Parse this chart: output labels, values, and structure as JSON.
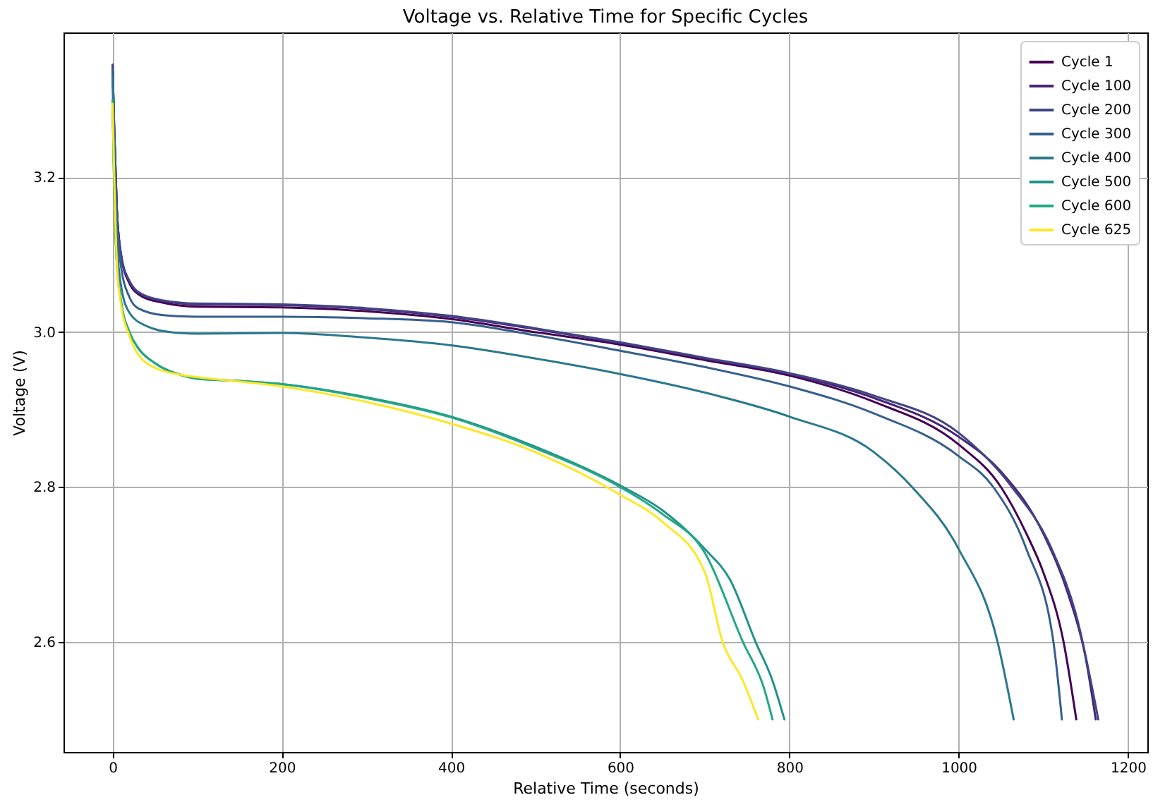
{
  "chart_data": {
    "type": "line",
    "title": "Voltage vs. Relative Time for Specific Cycles",
    "xlabel": "Relative Time (seconds)",
    "ylabel": "Voltage (V)",
    "xlim": [
      -58,
      1223
    ],
    "ylim": [
      2.458,
      3.387
    ],
    "xticks": [
      0,
      200,
      400,
      600,
      800,
      1000,
      1200
    ],
    "yticks": [
      2.6,
      2.8,
      {
        "value": 3.0,
        "label": "3.0"
      },
      3.2
    ],
    "grid": true,
    "legend": "top right",
    "marker": "none",
    "line_style": "solid",
    "series": [
      {
        "name": "Cycle 1",
        "color": "#440154",
        "x": [
          0,
          2,
          5,
          10,
          20,
          35,
          60,
          100,
          200,
          300,
          400,
          500,
          600,
          700,
          800,
          900,
          1000,
          1050,
          1080,
          1100,
          1124,
          1139
        ],
        "values": [
          3.345,
          3.26,
          3.16,
          3.1,
          3.063,
          3.046,
          3.038,
          3.033,
          3.032,
          3.027,
          3.017,
          3.0,
          2.984,
          2.964,
          2.944,
          2.91,
          2.855,
          2.8,
          2.74,
          2.69,
          2.6,
          2.5
        ]
      },
      {
        "name": "Cycle 100",
        "color": "#482475",
        "x": [
          0,
          2,
          5,
          10,
          20,
          35,
          60,
          100,
          200,
          300,
          400,
          500,
          600,
          700,
          800,
          900,
          1000,
          1050,
          1100,
          1130,
          1150,
          1162
        ],
        "values": [
          3.345,
          3.26,
          3.16,
          3.1,
          3.065,
          3.048,
          3.04,
          3.036,
          3.035,
          3.03,
          3.02,
          3.004,
          2.986,
          2.966,
          2.946,
          2.915,
          2.865,
          2.82,
          2.74,
          2.66,
          2.58,
          2.5
        ]
      },
      {
        "name": "Cycle 200",
        "color": "#414487",
        "x": [
          0,
          2,
          5,
          10,
          20,
          35,
          60,
          100,
          200,
          300,
          400,
          500,
          600,
          700,
          800,
          900,
          1000,
          1063,
          1110,
          1140,
          1165
        ],
        "values": [
          3.345,
          3.26,
          3.16,
          3.1,
          3.066,
          3.049,
          3.041,
          3.037,
          3.036,
          3.031,
          3.021,
          3.005,
          2.987,
          2.967,
          2.947,
          2.918,
          2.87,
          2.8,
          2.72,
          2.63,
          2.5
        ]
      },
      {
        "name": "Cycle 300",
        "color": "#355f8d",
        "x": [
          0,
          2,
          5,
          10,
          20,
          30,
          60,
          100,
          200,
          300,
          400,
          500,
          600,
          700,
          800,
          900,
          1000,
          1041,
          1080,
          1112,
          1122
        ],
        "values": [
          3.34,
          3.25,
          3.15,
          3.085,
          3.045,
          3.031,
          3.022,
          3.02,
          3.02,
          3.018,
          3.013,
          2.996,
          2.976,
          2.955,
          2.93,
          2.895,
          2.84,
          2.8,
          2.72,
          2.6,
          2.5
        ]
      },
      {
        "name": "Cycle 400",
        "color": "#2a788e",
        "x": [
          0,
          2,
          5,
          10,
          20,
          40,
          70,
          100,
          200,
          300,
          400,
          500,
          600,
          700,
          800,
          900,
          945,
          1000,
          1046,
          1065
        ],
        "values": [
          3.33,
          3.22,
          3.12,
          3.06,
          3.025,
          3.008,
          3.0,
          2.998,
          2.999,
          2.993,
          2.983,
          2.966,
          2.946,
          2.922,
          2.891,
          2.845,
          2.8,
          2.72,
          2.6,
          2.5
        ]
      },
      {
        "name": "Cycle 500",
        "color": "#21918c",
        "x": [
          0,
          2,
          5,
          10,
          20,
          30,
          50,
          80,
          100,
          150,
          200,
          300,
          400,
          500,
          600,
          650,
          700,
          730,
          760,
          780,
          794
        ],
        "values": [
          3.3,
          3.18,
          3.09,
          3.04,
          3.0,
          2.98,
          2.96,
          2.945,
          2.94,
          2.937,
          2.933,
          2.916,
          2.891,
          2.852,
          2.802,
          2.77,
          2.72,
          2.68,
          2.6,
          2.55,
          2.5
        ]
      },
      {
        "name": "Cycle 600",
        "color": "#22a884",
        "x": [
          0,
          2,
          5,
          10,
          20,
          30,
          50,
          80,
          100,
          150,
          200,
          300,
          400,
          500,
          600,
          650,
          700,
          745,
          770,
          780
        ],
        "values": [
          3.3,
          3.18,
          3.09,
          3.04,
          3.0,
          2.98,
          2.96,
          2.945,
          2.94,
          2.937,
          2.933,
          2.915,
          2.89,
          2.85,
          2.8,
          2.765,
          2.715,
          2.6,
          2.54,
          2.5
        ]
      },
      {
        "name": "Cycle 625",
        "color": "#fde725",
        "x": [
          0,
          5,
          10,
          20,
          40,
          80,
          100,
          200,
          300,
          400,
          500,
          600,
          650,
          700,
          721,
          745,
          763
        ],
        "values": [
          3.295,
          3.09,
          3.035,
          2.995,
          2.96,
          2.945,
          2.942,
          2.93,
          2.91,
          2.882,
          2.845,
          2.79,
          2.755,
          2.69,
          2.6,
          2.55,
          2.5
        ]
      }
    ]
  }
}
